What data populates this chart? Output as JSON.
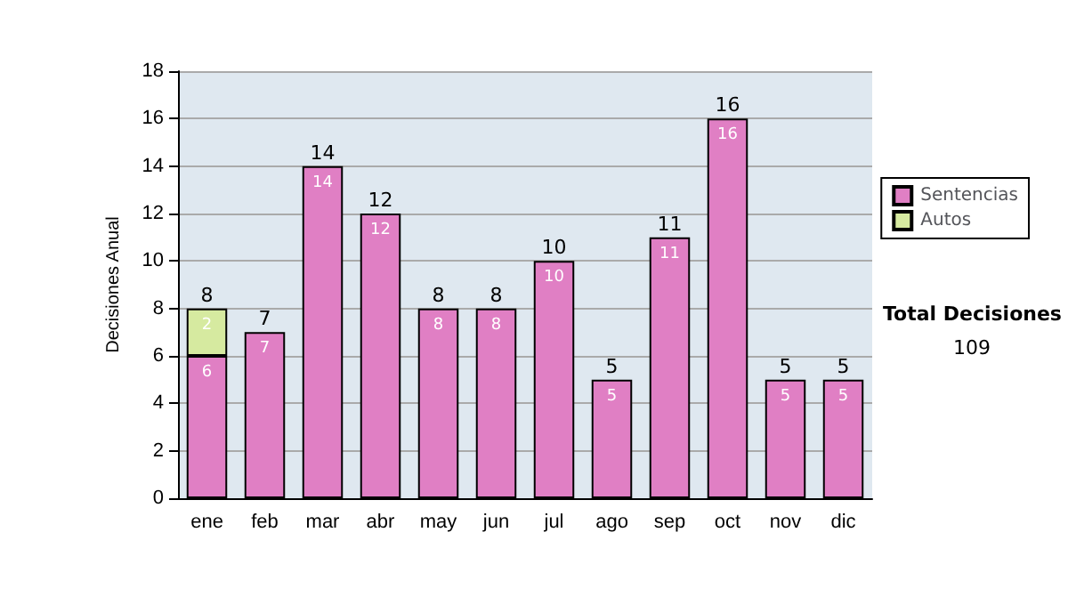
{
  "chart_data": {
    "type": "bar",
    "stacked": true,
    "ylabel": "Decisiones Anual",
    "categories": [
      "ene",
      "feb",
      "mar",
      "abr",
      "may",
      "jun",
      "jul",
      "ago",
      "sep",
      "oct",
      "nov",
      "dic"
    ],
    "series": [
      {
        "name": "Sentencias",
        "color": "#e07fc4",
        "values": [
          6,
          7,
          14,
          12,
          8,
          8,
          10,
          5,
          11,
          16,
          5,
          5
        ]
      },
      {
        "name": "Autos",
        "color": "#d6eaa0",
        "values": [
          2,
          null,
          null,
          null,
          null,
          null,
          null,
          null,
          null,
          null,
          null,
          null
        ]
      }
    ],
    "totals": [
      "8",
      "7",
      "14",
      "12",
      "8",
      "8",
      "10",
      "5",
      "11",
      "16",
      "5",
      "5"
    ],
    "data_labels": true,
    "ylim": [
      0,
      18
    ],
    "yticks": [
      0,
      2,
      4,
      6,
      8,
      10,
      12,
      14,
      16,
      18
    ],
    "grid": "y",
    "legend": "right",
    "annotations": [
      "Total Decisiones",
      "109"
    ]
  }
}
